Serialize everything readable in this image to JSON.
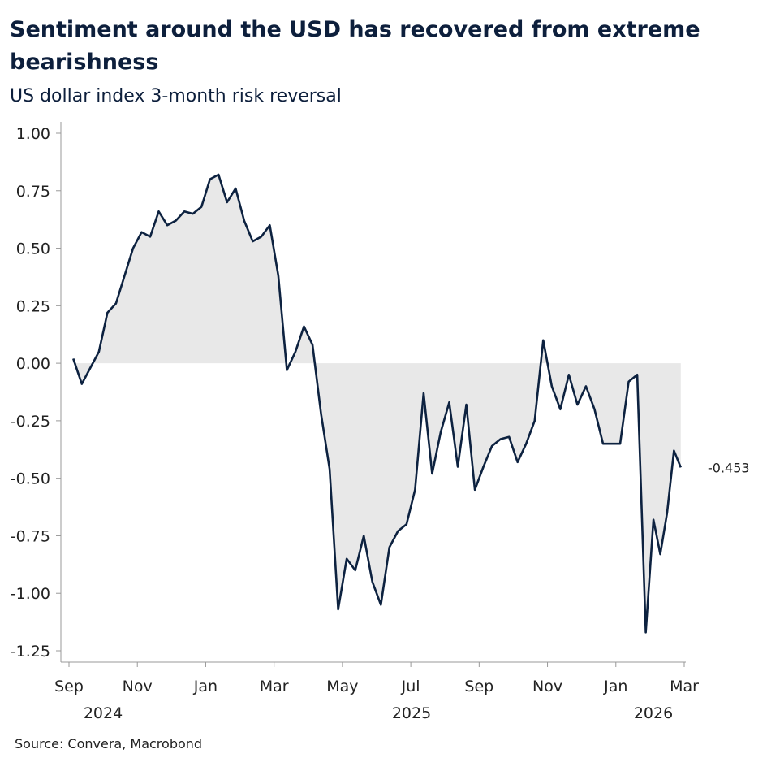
{
  "chart_data": {
    "type": "line",
    "title": "Sentiment around the USD has recovered from extreme bearishness",
    "subtitle": "US dollar index 3-month risk reversal",
    "source": "Source: Convera, Macrobond",
    "x": [
      "2024-09",
      "2024-09",
      "2024-09",
      "2024-09",
      "2024-10",
      "2024-10",
      "2024-10",
      "2024-10",
      "2024-11",
      "2024-11",
      "2024-11",
      "2024-11",
      "2024-12",
      "2024-12",
      "2024-12",
      "2024-12",
      "2025-01",
      "2025-01",
      "2025-01",
      "2025-01",
      "2025-02",
      "2025-02",
      "2025-02",
      "2025-02",
      "2025-03",
      "2025-03",
      "2025-03",
      "2025-03",
      "2025-04",
      "2025-04",
      "2025-04",
      "2025-04",
      "2025-05",
      "2025-05",
      "2025-05",
      "2025-05",
      "2025-06",
      "2025-06",
      "2025-06",
      "2025-06",
      "2025-07",
      "2025-07",
      "2025-07",
      "2025-07",
      "2025-08",
      "2025-08",
      "2025-08",
      "2025-08",
      "2025-09",
      "2025-09",
      "2025-09",
      "2025-09",
      "2025-10",
      "2025-10",
      "2025-10",
      "2025-10",
      "2025-11",
      "2025-11",
      "2025-11",
      "2025-11",
      "2025-12",
      "2025-12",
      "2025-12",
      "2025-12",
      "2026-01",
      "2026-01",
      "2026-01",
      "2026-01",
      "2026-02",
      "2026-02",
      "2026-02",
      "2026-02",
      "2026-02"
    ],
    "series": [
      {
        "color": "#0d2240",
        "fill": "#e8e8e8",
        "values": [
          0.02,
          -0.09,
          -0.02,
          0.05,
          0.22,
          0.26,
          0.38,
          0.5,
          0.57,
          0.55,
          0.66,
          0.6,
          0.62,
          0.66,
          0.65,
          0.68,
          0.8,
          0.82,
          0.7,
          0.76,
          0.62,
          0.53,
          0.55,
          0.6,
          0.38,
          -0.03,
          0.05,
          0.16,
          0.08,
          -0.22,
          -0.46,
          -1.07,
          -0.85,
          -0.9,
          -0.75,
          -0.95,
          -1.05,
          -0.8,
          -0.73,
          -0.7,
          -0.55,
          -0.13,
          -0.48,
          -0.3,
          -0.17,
          -0.45,
          -0.18,
          -0.55,
          -0.45,
          -0.36,
          -0.33,
          -0.32,
          -0.43,
          -0.35,
          -0.25,
          0.1,
          -0.1,
          -0.2,
          -0.05,
          -0.18,
          -0.1,
          -0.2,
          -0.35,
          -0.35,
          -0.35,
          -0.08,
          -0.05,
          -1.17,
          -0.68,
          -0.83,
          -0.65,
          -0.38,
          -0.453
        ]
      }
    ],
    "xlim": [
      "2024-09",
      "2026-03"
    ],
    "xticks": [
      {
        "value": "2024-09",
        "label": "Sep"
      },
      {
        "value": "2024-11",
        "label": "Nov"
      },
      {
        "value": "2025-01",
        "label": "Jan"
      },
      {
        "value": "2025-03",
        "label": "Mar"
      },
      {
        "value": "2025-05",
        "label": "May"
      },
      {
        "value": "2025-07",
        "label": "Jul"
      },
      {
        "value": "2025-09",
        "label": "Sep"
      },
      {
        "value": "2025-11",
        "label": "Nov"
      },
      {
        "value": "2026-01",
        "label": "Jan"
      },
      {
        "value": "2026-03",
        "label": "Mar"
      }
    ],
    "x_year_labels": [
      "2024",
      "2025",
      "2026"
    ],
    "ylim": [
      -1.25,
      1.0
    ],
    "yticks": [
      {
        "value": 1,
        "label": "1.00"
      },
      {
        "value": 0.75,
        "label": "0.75"
      },
      {
        "value": 0.5,
        "label": "0.50"
      },
      {
        "value": 0.25,
        "label": "0.25"
      },
      {
        "value": 0,
        "label": "0.00"
      },
      {
        "value": -0.25,
        "label": "-0.25"
      },
      {
        "value": -0.5,
        "label": "-0.50"
      },
      {
        "value": -0.75,
        "label": "-0.75"
      },
      {
        "value": -1,
        "label": "-1.00"
      },
      {
        "value": -1.25,
        "label": "-1.25"
      }
    ]
  }
}
